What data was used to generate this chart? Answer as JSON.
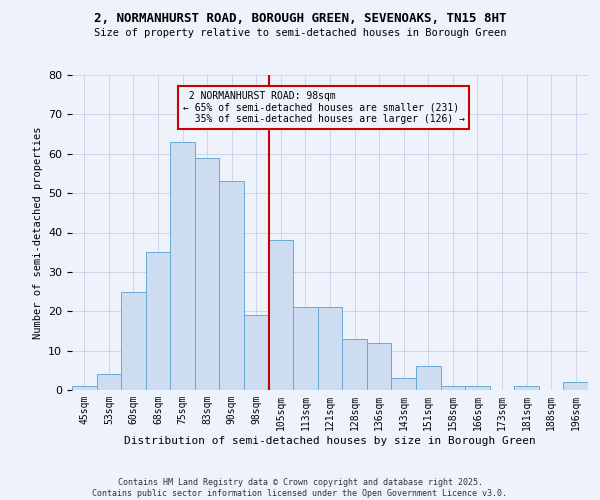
{
  "title1": "2, NORMANHURST ROAD, BOROUGH GREEN, SEVENOAKS, TN15 8HT",
  "title2": "Size of property relative to semi-detached houses in Borough Green",
  "xlabel": "Distribution of semi-detached houses by size in Borough Green",
  "ylabel": "Number of semi-detached properties",
  "footer1": "Contains HM Land Registry data © Crown copyright and database right 2025.",
  "footer2": "Contains public sector information licensed under the Open Government Licence v3.0.",
  "bin_labels": [
    "45sqm",
    "53sqm",
    "60sqm",
    "68sqm",
    "75sqm",
    "83sqm",
    "90sqm",
    "98sqm",
    "105sqm",
    "113sqm",
    "121sqm",
    "128sqm",
    "136sqm",
    "143sqm",
    "151sqm",
    "158sqm",
    "166sqm",
    "173sqm",
    "181sqm",
    "188sqm",
    "196sqm"
  ],
  "bar_values": [
    1,
    4,
    25,
    35,
    63,
    59,
    53,
    19,
    38,
    21,
    21,
    13,
    12,
    3,
    6,
    1,
    1,
    0,
    1,
    0,
    2
  ],
  "property_label": "2 NORMANHURST ROAD: 98sqm",
  "pct_smaller": 65,
  "pct_larger": 35,
  "n_smaller": 231,
  "n_larger": 126,
  "bar_color": "#cddcf0",
  "bar_edge_color": "#6aaad4",
  "vline_color": "#cc0000",
  "background_color": "#eef2fb",
  "grid_color": "#c8d0e8",
  "ylim": [
    0,
    80
  ],
  "yticks": [
    0,
    10,
    20,
    30,
    40,
    50,
    60,
    70,
    80
  ]
}
